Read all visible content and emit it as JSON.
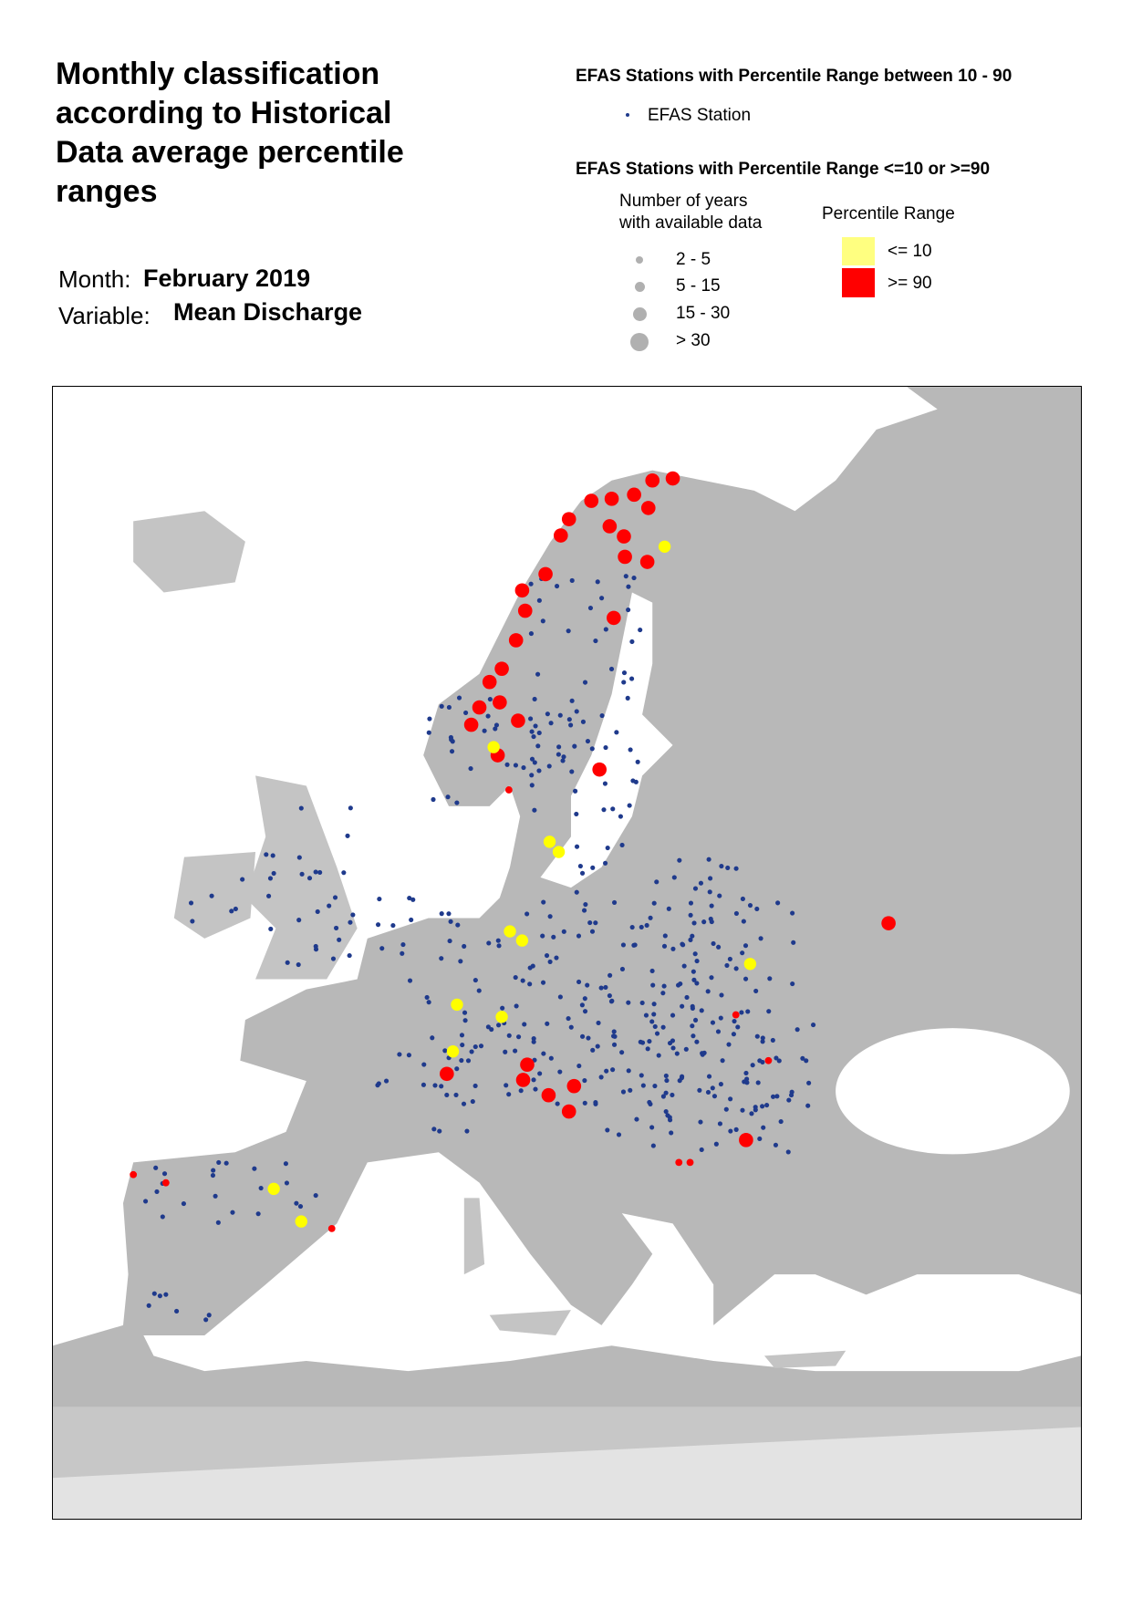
{
  "header": {
    "title": "Monthly classification according to Historical Data average percentile ranges",
    "month_label": "Month:",
    "month": "February 2019",
    "variable_label": "Variable:",
    "variable": "Mean Discharge"
  },
  "legend": {
    "normal_heading": "EFAS Stations with Percentile Range between 10 - 90",
    "normal_item": "EFAS Station",
    "extreme_heading": "EFAS Stations with Percentile Range <=10 or >=90",
    "years_heading_1": "Number of years",
    "years_heading_2": "with available data",
    "years": [
      "2 - 5",
      "5 - 15",
      "15 - 30",
      "> 30"
    ],
    "range_heading": "Percentile Range",
    "ranges": [
      "<= 10",
      ">= 90"
    ]
  }
}
